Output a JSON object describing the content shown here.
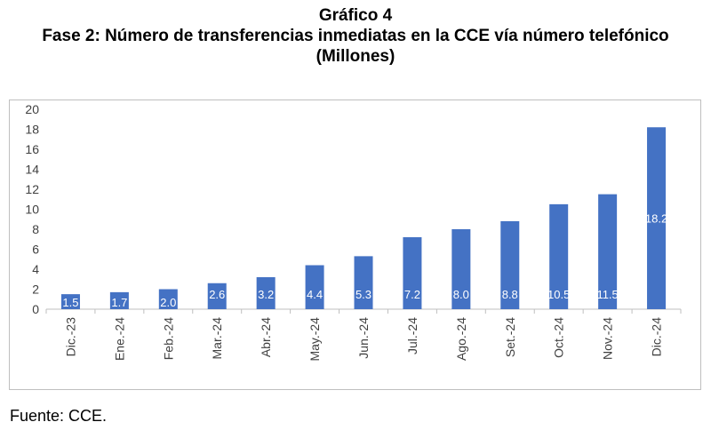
{
  "header": {
    "title_line1": "Gráfico 4",
    "title_line2": "Fase 2: Número de transferencias inmediatas en la CCE vía número telefónico",
    "title_line3": "(Millones)"
  },
  "footer": {
    "source": "Fuente: CCE."
  },
  "chart_data": {
    "type": "bar",
    "title": "Gráfico 4 Fase 2: Número de transferencias inmediatas en la CCE vía número telefónico",
    "subtitle": "(Millones)",
    "categories": [
      "Dic.-23",
      "Ene.-24",
      "Feb.-24",
      "Mar.-24",
      "Abr.-24",
      "May.-24",
      "Jun.-24",
      "Jul.-24",
      "Ago.-24",
      "Set.-24",
      "Oct.-24",
      "Nov.-24",
      "Dic.-24"
    ],
    "values": [
      1.5,
      1.7,
      2.0,
      2.6,
      3.2,
      4.4,
      5.3,
      7.2,
      8.0,
      8.8,
      10.5,
      11.5,
      18.2
    ],
    "data_labels": [
      "1.5",
      "1.7",
      "2.0",
      "2.6",
      "3.2",
      "4.4",
      "5.3",
      "7.2",
      "8.0",
      "8.8",
      "10.5",
      "11.5",
      "18.2"
    ],
    "yticks": [
      "0",
      "2",
      "4",
      "6",
      "8",
      "10",
      "12",
      "14",
      "16",
      "18",
      "20"
    ],
    "ylim": [
      0,
      20
    ],
    "xlabel": "",
    "ylabel": "",
    "grid": false,
    "legend": "none",
    "bar_color": "#4472c4",
    "label_color": "#ffffff"
  }
}
